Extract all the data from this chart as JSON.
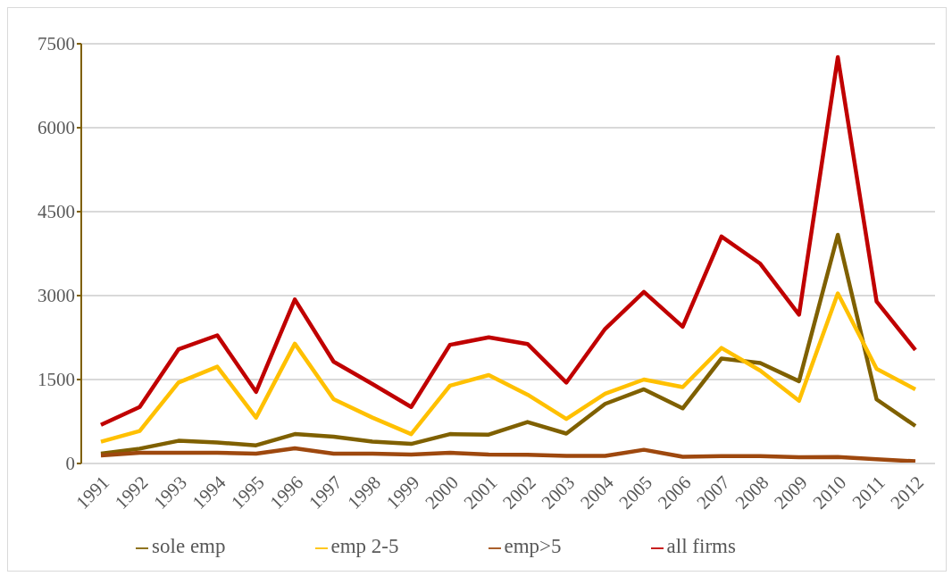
{
  "chart_data": {
    "type": "line",
    "categories": [
      "1991",
      "1992",
      "1993",
      "1994",
      "1995",
      "1996",
      "1997",
      "1998",
      "1999",
      "2000",
      "2001",
      "2002",
      "2003",
      "2004",
      "2005",
      "2006",
      "2007",
      "2008",
      "2009",
      "2010",
      "2011",
      "2012"
    ],
    "series": [
      {
        "name": "sole emp",
        "color": "#7f6000",
        "values": [
          175,
          265,
          405,
          375,
          325,
          525,
          480,
          390,
          350,
          525,
          515,
          740,
          535,
          1065,
          1325,
          985,
          1875,
          1795,
          1470,
          4085,
          1145,
          670
        ]
      },
      {
        "name": "emp 2-5",
        "color": "#ffc000",
        "values": [
          390,
          580,
          1445,
          1730,
          820,
          2140,
          1150,
          820,
          525,
          1390,
          1580,
          1230,
          795,
          1245,
          1500,
          1365,
          2065,
          1660,
          1120,
          3040,
          1690,
          1325
        ]
      },
      {
        "name": "emp>5",
        "color": "#9e480e",
        "values": [
          145,
          190,
          190,
          190,
          175,
          270,
          175,
          175,
          160,
          190,
          160,
          155,
          135,
          135,
          245,
          120,
          130,
          130,
          110,
          115,
          75,
          40
        ]
      },
      {
        "name": "all firms",
        "color": "#c00000",
        "values": [
          690,
          1010,
          2040,
          2290,
          1280,
          2930,
          1820,
          1420,
          1010,
          2120,
          2255,
          2135,
          1445,
          2405,
          3065,
          2445,
          4055,
          3570,
          2660,
          7260,
          2895,
          2030
        ]
      }
    ],
    "ylim": [
      0,
      7500
    ],
    "yticks": [
      0,
      1500,
      3000,
      4500,
      6000,
      7500
    ],
    "grid": "y",
    "legend": "bottom",
    "marker": "none",
    "line_style": "solid"
  }
}
